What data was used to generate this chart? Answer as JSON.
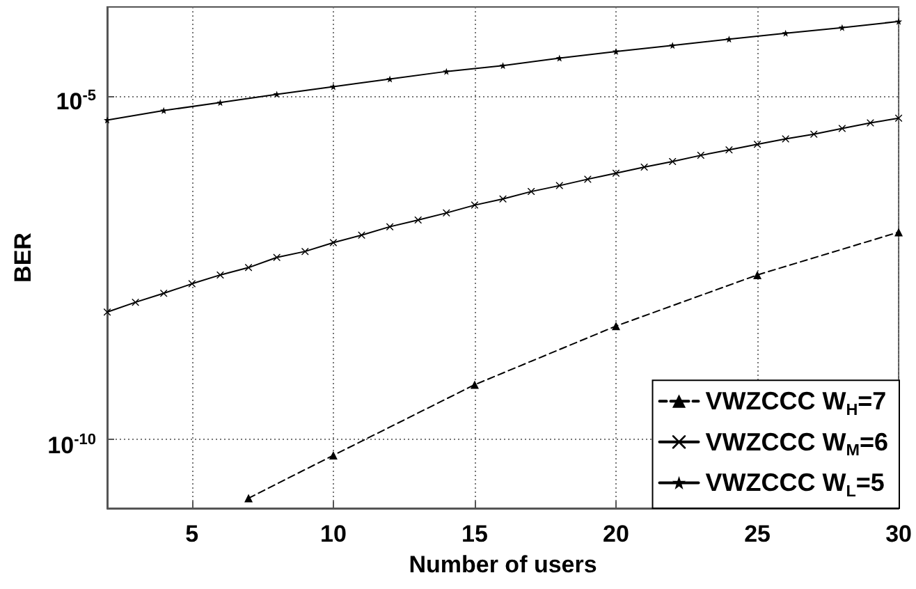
{
  "chart_data": {
    "type": "line",
    "xlabel": "Number of users",
    "ylabel": "BER",
    "xlim": [
      2,
      30
    ],
    "xticks": [
      5,
      10,
      15,
      20,
      25,
      30
    ],
    "ylim": [
      1e-11,
      0.0002
    ],
    "yticks": [
      {
        "value": 1e-10,
        "label": "10$^{-10}$"
      },
      {
        "value": 1e-05,
        "label": "10$^{-5}$"
      }
    ],
    "log": "y",
    "grid": true,
    "legend": "bottom right",
    "series": [
      {
        "name": "VWZCCC W$_{H}$=7",
        "color": "#000000",
        "marker": "triangle",
        "line_style": "dashed",
        "x": [
          7,
          10,
          15,
          20,
          25,
          30
        ],
        "values": [
          1.4e-11,
          5.9e-11,
          6.3e-10,
          4.5e-09,
          2.5e-08,
          1.05e-07
        ]
      },
      {
        "name": "VWZCCC W$_{M}$=6",
        "color": "#000000",
        "marker": "cross",
        "line_style": "solid",
        "x": [
          2,
          3,
          4,
          5,
          6,
          7,
          8,
          9,
          10,
          11,
          12,
          13,
          14,
          15,
          16,
          17,
          18,
          19,
          20,
          21,
          22,
          23,
          24,
          25,
          26,
          27,
          28,
          29,
          30
        ],
        "values": [
          7.2e-09,
          1e-08,
          1.35e-08,
          1.86e-08,
          2.5e-08,
          3.2e-08,
          4.5e-08,
          5.5e-08,
          7.4e-08,
          9.5e-08,
          1.26e-07,
          1.58e-07,
          2e-07,
          2.6e-07,
          3.2e-07,
          4.1e-07,
          5e-07,
          6.2e-07,
          7.6e-07,
          9.3e-07,
          1.12e-06,
          1.38e-06,
          1.66e-06,
          2e-06,
          2.4e-06,
          2.8e-06,
          3.4e-06,
          4.1e-06,
          4.8e-06
        ]
      },
      {
        "name": "VWZCCC W$_{L}$=5",
        "color": "#000000",
        "marker": "star",
        "line_style": "solid",
        "x": [
          2,
          4,
          6,
          8,
          10,
          12,
          14,
          16,
          18,
          20,
          22,
          24,
          26,
          28,
          30
        ],
        "values": [
          4.5e-06,
          6.2e-06,
          8.1e-06,
          1.07e-05,
          1.38e-05,
          1.78e-05,
          2.3e-05,
          2.8e-05,
          3.6e-05,
          4.5e-05,
          5.5e-05,
          6.8e-05,
          8.3e-05,
          0.0001,
          0.000123
        ]
      }
    ]
  }
}
